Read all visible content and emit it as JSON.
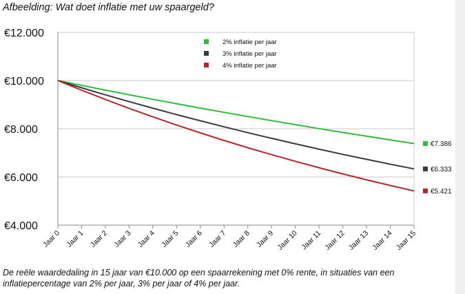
{
  "figure": {
    "title": "Afbeelding: Wat doet inflatie met uw spaargeld?",
    "caption": "De reële waardedaling in 15 jaar van €10.000 op een spaarrekening met 0% rente, in situaties van een inflatiepercentage van 2% per jaar, 3% per jaar of 4% per jaar."
  },
  "chart_data": {
    "type": "line",
    "title": "",
    "xlabel": "",
    "ylabel": "",
    "categories": [
      "Jaar 0",
      "Jaar 1",
      "Jaar 2",
      "Jaar 3",
      "Jaar 4",
      "Jaar 5",
      "Jaar 6",
      "Jaar 7",
      "Jaar 8",
      "Jaar 9",
      "Jaar 10",
      "Jaar 11",
      "Jaar 12",
      "Jaar 13",
      "Jaar 14",
      "Jaar 15"
    ],
    "ylim": [
      4000,
      12000
    ],
    "yticks": [
      4000,
      6000,
      8000,
      10000,
      12000
    ],
    "ytick_labels": [
      "€4.000",
      "€6.000",
      "€8.000",
      "€10.000",
      "€12.000"
    ],
    "grid": "horizontal",
    "legend_position": "top",
    "series": [
      {
        "name": "2% inflatie per jaar",
        "color": "#2dbb3a",
        "end_label": "€7.386",
        "values": [
          10000,
          9800,
          9604,
          9412,
          9224,
          9039,
          8858,
          8681,
          8508,
          8337,
          8171,
          8007,
          7847,
          7690,
          7536,
          7386
        ]
      },
      {
        "name": "3% inflatie per jaar",
        "color": "#3a3a3a",
        "end_label": "€6.333",
        "values": [
          10000,
          9700,
          9409,
          9127,
          8853,
          8587,
          8330,
          8080,
          7837,
          7602,
          7374,
          7153,
          6938,
          6730,
          6528,
          6333
        ]
      },
      {
        "name": "4% inflatie per jaar",
        "color": "#b3262b",
        "end_label": "€5.421",
        "values": [
          10000,
          9600,
          9216,
          8847,
          8493,
          8154,
          7828,
          7514,
          7214,
          6925,
          6648,
          6382,
          6127,
          5882,
          5647,
          5421
        ]
      }
    ]
  }
}
